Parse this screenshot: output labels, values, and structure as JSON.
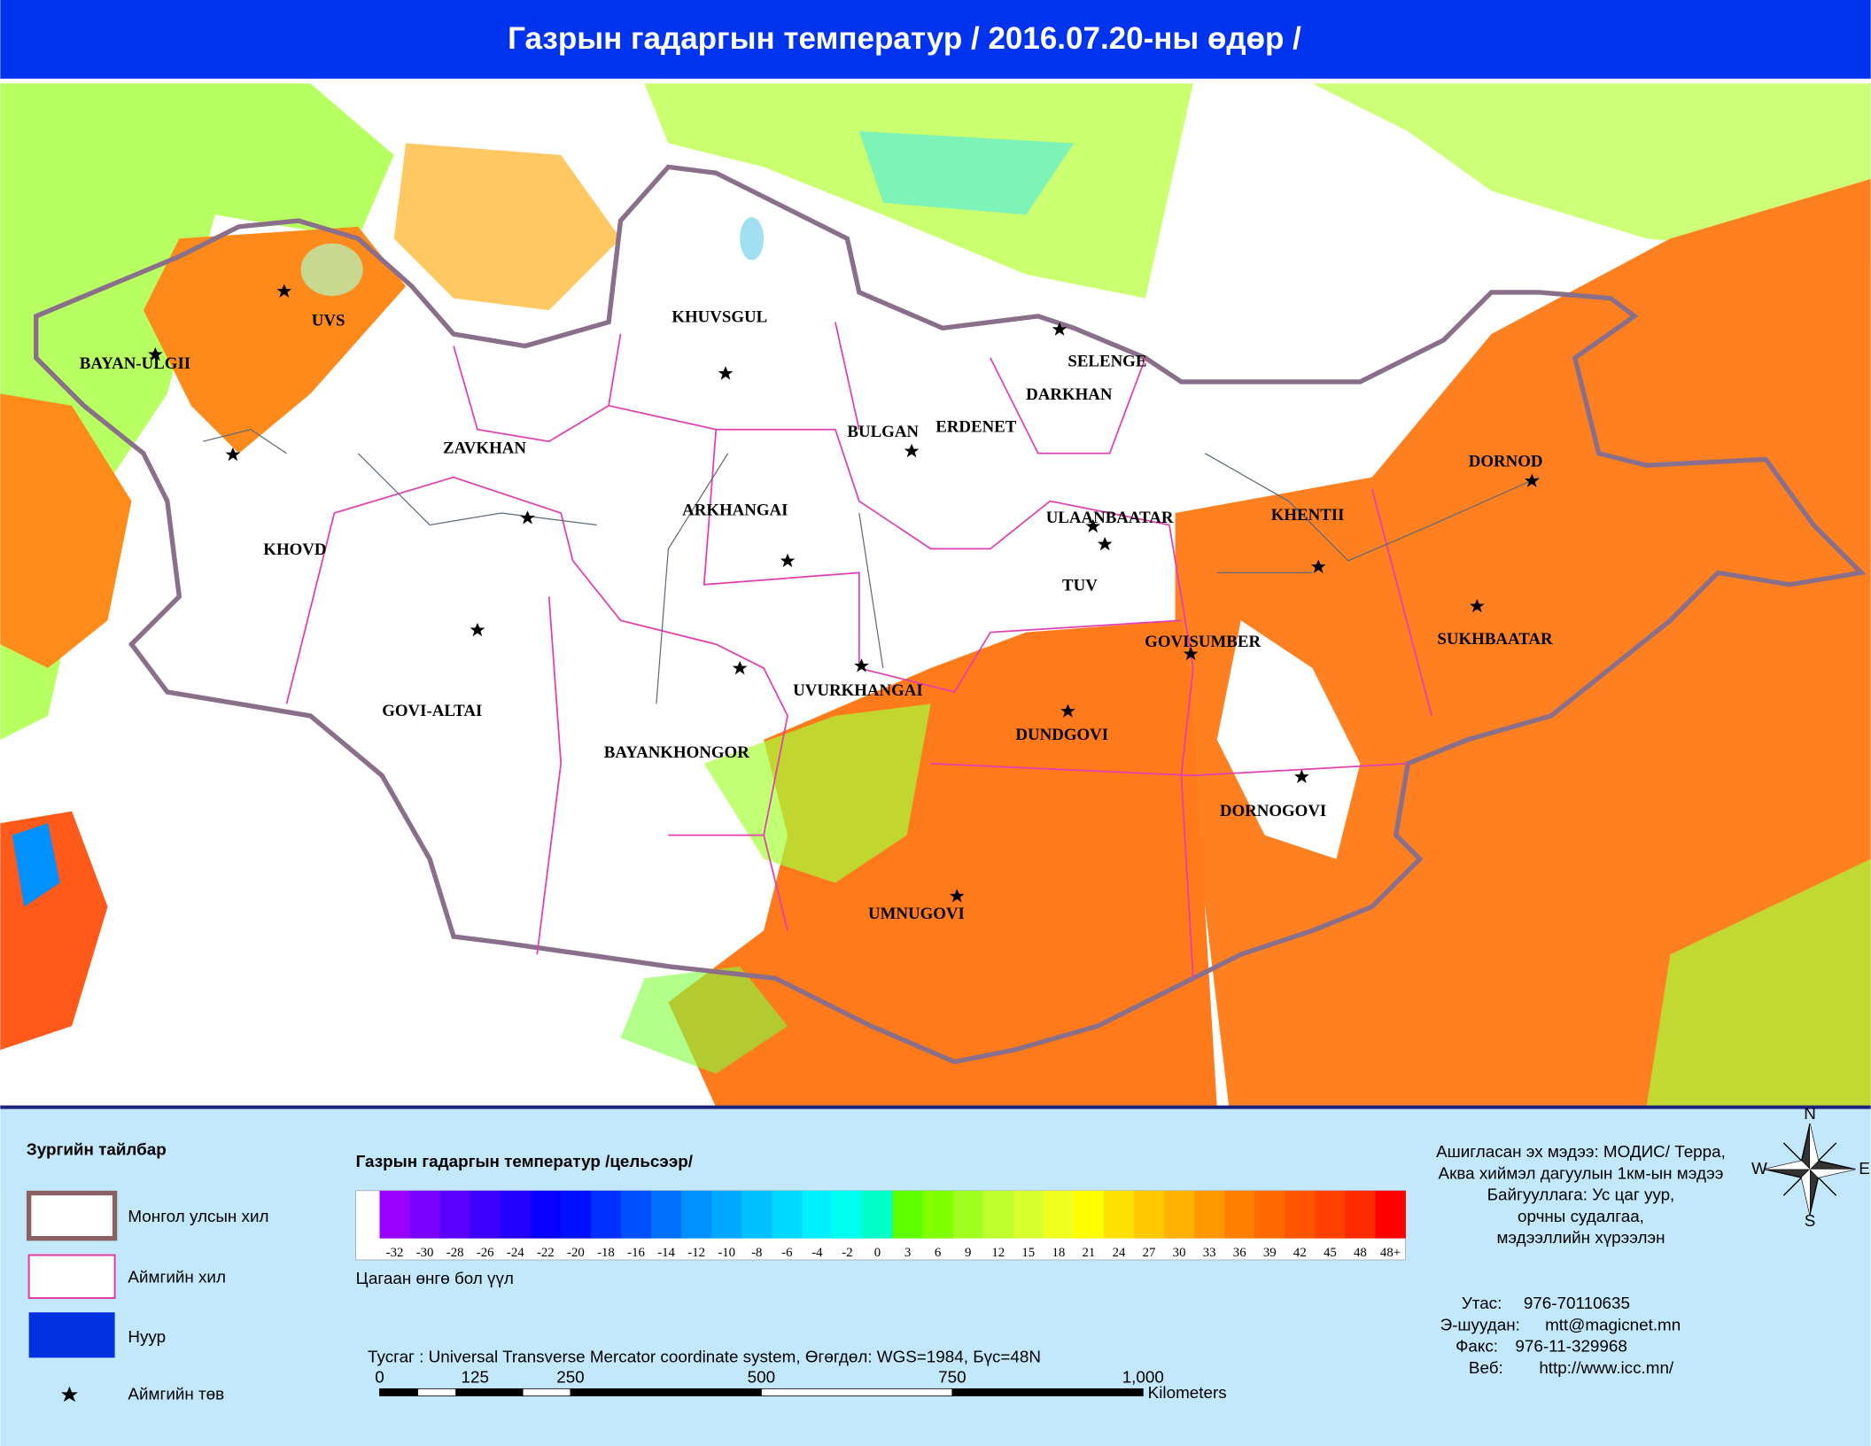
{
  "header": {
    "title": "Газрын гадаргын температур / 2016.07.20-ны өдөр /"
  },
  "map": {
    "provinces": [
      "UVS",
      "BAYAN-ULGII",
      "KHUVSGUL",
      "SELENGE",
      "DARKHAN",
      "BULGAN",
      "ERDENET",
      "ZAVKHAN",
      "ARKHANGAI",
      "ULAANBAATAR",
      "KHENTII",
      "DORNOD",
      "KHOVD",
      "TUV",
      "GOVISUMBER",
      "SUKHBAATAR",
      "GOVI-ALTAI",
      "UVURKHANGAI",
      "DUNDGOVI",
      "BAYANKHONGOR",
      "DORNOGOVI",
      "UMNUGOVI"
    ]
  },
  "legend": {
    "title": "Зургийн тайлбар",
    "items": [
      "Монгол улсын хил",
      "Аймгийн хил",
      "Нуур",
      "Аймгийн төв"
    ]
  },
  "colorbar": {
    "title": "Газрын гадаргын температур /цельсээр/",
    "labels": [
      "-32",
      "-30",
      "-28",
      "-26",
      "-24",
      "-22",
      "-20",
      "-18",
      "-16",
      "-14",
      "-12",
      "-10",
      "-8",
      "-6",
      "-4",
      "-2",
      "0",
      "3",
      "6",
      "9",
      "12",
      "15",
      "18",
      "21",
      "24",
      "27",
      "30",
      "33",
      "36",
      "39",
      "42",
      "45",
      "48",
      "48+"
    ],
    "colors": [
      "#9900ff",
      "#7a00ff",
      "#5a00ff",
      "#3c00ff",
      "#2400ff",
      "#0a00ff",
      "#0010ff",
      "#0030ff",
      "#0050ff",
      "#0070ff",
      "#0090ff",
      "#00a8ff",
      "#00c0ff",
      "#00d8ff",
      "#00f0ff",
      "#00ffee",
      "#00ffc8",
      "#60ff00",
      "#80ff00",
      "#a0ff20",
      "#bfff30",
      "#d8ff30",
      "#f0ff20",
      "#ffff00",
      "#ffe000",
      "#ffc800",
      "#ffb000",
      "#ff9800",
      "#ff8000",
      "#ff6a00",
      "#ff5500",
      "#ff4000",
      "#ff2a00",
      "#ff0000"
    ],
    "note": "Цагаан өнгө бол үүл"
  },
  "projection": "Тусгаг : Universal Transverse Mercator coordinate system, Өгөгдөл: WGS=1984, Бүс=48N",
  "scale": {
    "labels": [
      "0",
      "125",
      "250",
      "500",
      "750",
      "1,000"
    ],
    "unit": "Kilometers"
  },
  "source": [
    "Ашигласан эх мэдээ: МОДИС/ Терра,",
    "Аква хиймэл дагуулын 1км-ын мэдээ",
    "Байгууллага: Ус цаг уур,",
    "орчны судалгаа,",
    "мэдээллийн хүрээлэн"
  ],
  "contacts": [
    [
      "Утас:",
      "976-70110635"
    ],
    [
      "Э-шуудан:",
      "mtt@magicnet.mn"
    ],
    [
      "Факс:",
      "976-11-329968"
    ],
    [
      "Веб:",
      "http://www.icc.mn/"
    ]
  ],
  "compass": [
    "N",
    "E",
    "S",
    "W"
  ]
}
